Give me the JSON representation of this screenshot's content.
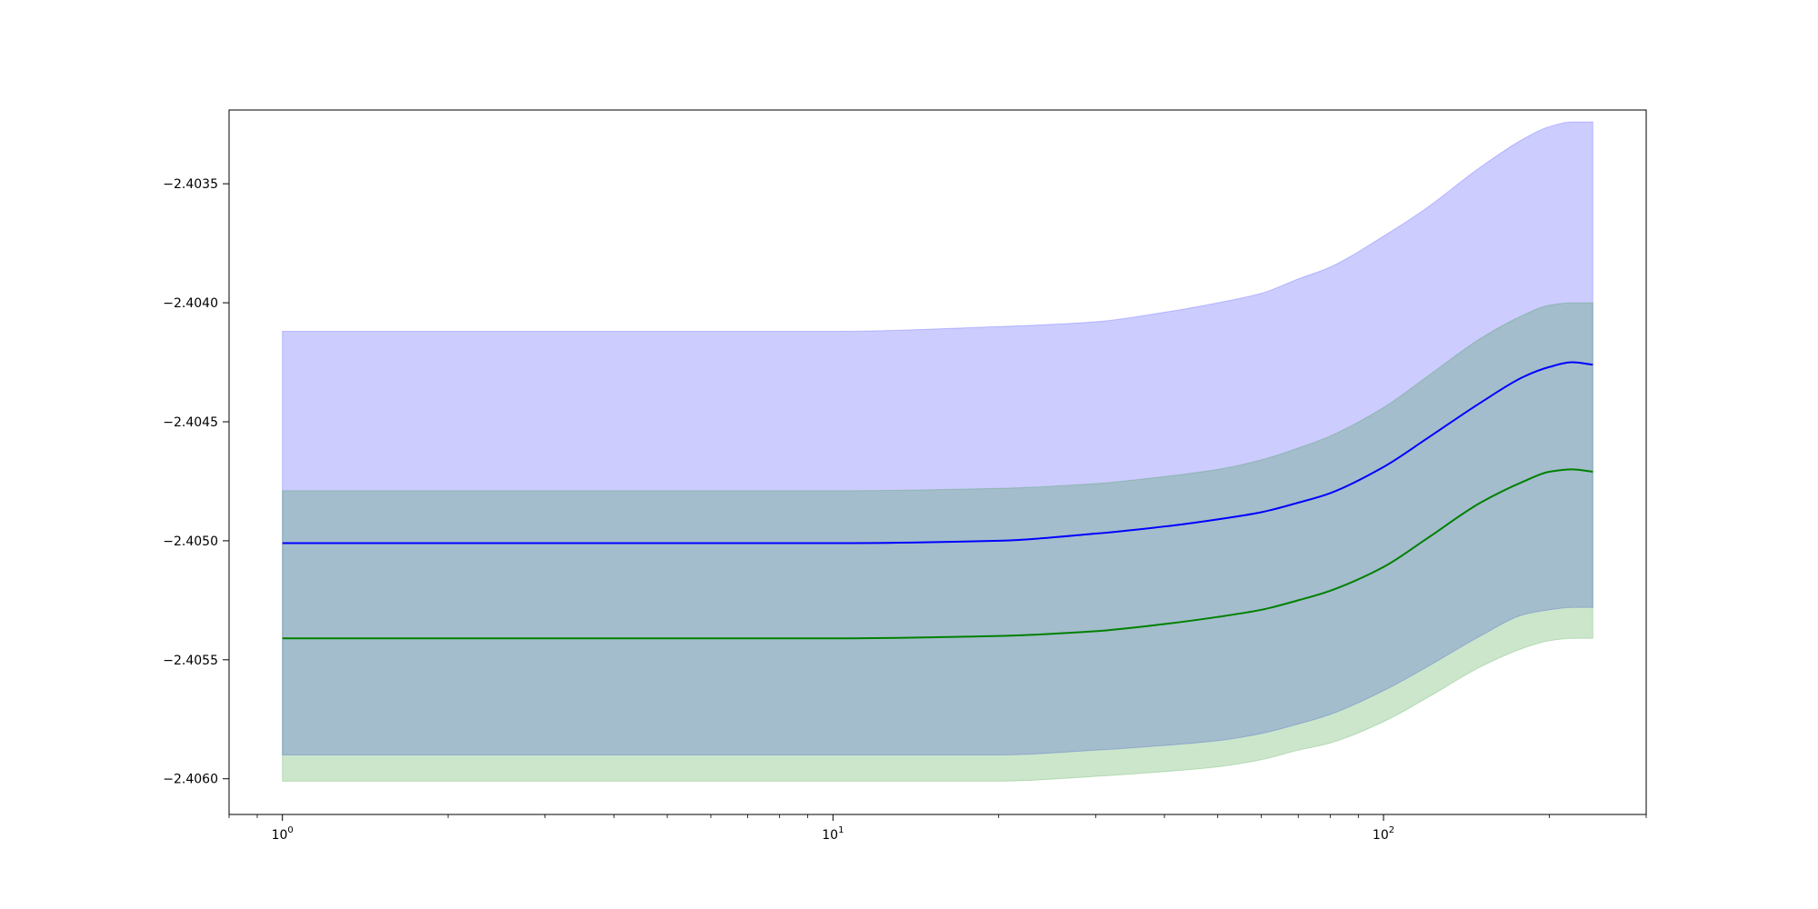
{
  "chart_data": {
    "type": "line",
    "xscale": "log",
    "xlim": [
      0.8,
      300
    ],
    "ylim": [
      -2.40615,
      -2.40319
    ],
    "grid": false,
    "legend": "none",
    "x_major_ticks": [
      1,
      10,
      100
    ],
    "x_tick_labels": [
      {
        "base": "10",
        "exp": "0"
      },
      {
        "base": "10",
        "exp": "1"
      },
      {
        "base": "10",
        "exp": "2"
      }
    ],
    "y_ticks": [
      -2.4035,
      -2.404,
      -2.4045,
      -2.405,
      -2.4055,
      -2.406
    ],
    "y_tick_labels": [
      "−2.4035",
      "−2.4040",
      "−2.4045",
      "−2.4050",
      "−2.4055",
      "−2.4060"
    ],
    "x": [
      1,
      10,
      20,
      30,
      40,
      50,
      60,
      70,
      80,
      100,
      120,
      150,
      180,
      200,
      220,
      240
    ],
    "series": [
      {
        "color": "#0000ff",
        "band_color": "#0000ff",
        "band_opacity": 0.2,
        "mean": [
          -2.40501,
          -2.40501,
          -2.405,
          -2.40497,
          -2.40494,
          -2.40491,
          -2.40488,
          -2.40484,
          -2.4048,
          -2.40469,
          -2.40457,
          -2.40442,
          -2.40431,
          -2.40427,
          -2.40425,
          -2.40426
        ],
        "upper": [
          -2.40412,
          -2.40412,
          -2.4041,
          -2.40408,
          -2.40404,
          -2.404,
          -2.40396,
          -2.4039,
          -2.40385,
          -2.40372,
          -2.4036,
          -2.40343,
          -2.40331,
          -2.40326,
          -2.40324,
          -2.40324
        ],
        "lower": [
          -2.4059,
          -2.4059,
          -2.4059,
          -2.40588,
          -2.40586,
          -2.40584,
          -2.40581,
          -2.40577,
          -2.40573,
          -2.40563,
          -2.40553,
          -2.4054,
          -2.40531,
          -2.40529,
          -2.40528,
          -2.40528
        ]
      },
      {
        "color": "#008000",
        "band_color": "#008000",
        "band_opacity": 0.2,
        "mean": [
          -2.40541,
          -2.40541,
          -2.4054,
          -2.40538,
          -2.40535,
          -2.40532,
          -2.40529,
          -2.40525,
          -2.40521,
          -2.40511,
          -2.40499,
          -2.40484,
          -2.40475,
          -2.40471,
          -2.4047,
          -2.40471
        ],
        "upper": [
          -2.40479,
          -2.40479,
          -2.40478,
          -2.40476,
          -2.40473,
          -2.4047,
          -2.40466,
          -2.40461,
          -2.40456,
          -2.40444,
          -2.40431,
          -2.40415,
          -2.40405,
          -2.40401,
          -2.404,
          -2.404
        ],
        "lower": [
          -2.40601,
          -2.40601,
          -2.40601,
          -2.40599,
          -2.40597,
          -2.40595,
          -2.40592,
          -2.40588,
          -2.40585,
          -2.40576,
          -2.40566,
          -2.40553,
          -2.40545,
          -2.40542,
          -2.40541,
          -2.40541
        ]
      }
    ]
  }
}
